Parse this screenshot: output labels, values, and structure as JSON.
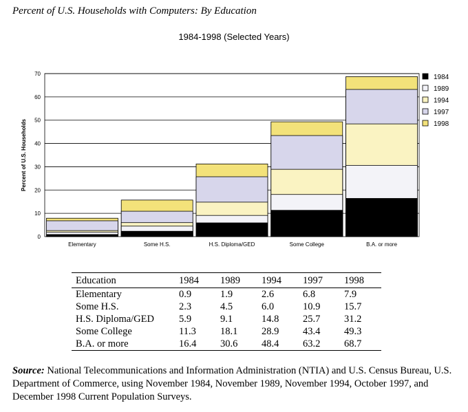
{
  "title": "Percent of U.S. Households with Computers: By Education",
  "subtitle": "1984-1998 (Selected Years)",
  "chart_data": {
    "type": "bar",
    "stacked_overlay": true,
    "categories": [
      "Elementary",
      "Some H.S.",
      "H.S. Diploma/GED",
      "Some College",
      "B.A. or more"
    ],
    "series": [
      {
        "name": "1984",
        "values": [
          0.9,
          2.3,
          5.9,
          11.3,
          16.4
        ],
        "color": "#000000"
      },
      {
        "name": "1989",
        "values": [
          1.9,
          4.5,
          9.1,
          18.1,
          30.6
        ],
        "color": "#f3f3f8"
      },
      {
        "name": "1994",
        "values": [
          2.6,
          6.0,
          14.8,
          28.9,
          48.4
        ],
        "color": "#faf3c2"
      },
      {
        "name": "1997",
        "values": [
          6.8,
          10.9,
          25.7,
          43.4,
          63.2
        ],
        "color": "#d7d6eb"
      },
      {
        "name": "1998",
        "values": [
          7.9,
          15.7,
          31.2,
          49.3,
          68.7
        ],
        "color": "#f3e27a"
      }
    ],
    "ylabel": "Percent of U.S. Households",
    "xlabel": "",
    "ylim": [
      0,
      70
    ],
    "yticks": [
      0,
      10,
      20,
      30,
      40,
      50,
      60,
      70
    ],
    "grid": true,
    "legend_position": "top-right"
  },
  "table": {
    "headers": [
      "Education",
      "1984",
      "1989",
      "1994",
      "1997",
      "1998"
    ],
    "rows": [
      [
        "Elementary",
        "0.9",
        "1.9",
        "2.6",
        "6.8",
        "7.9"
      ],
      [
        "Some H.S.",
        "2.3",
        "4.5",
        "6.0",
        "10.9",
        "15.7"
      ],
      [
        "H.S. Diploma/GED",
        "5.9",
        "9.1",
        "14.8",
        "25.7",
        "31.2"
      ],
      [
        "Some College",
        "11.3",
        "18.1",
        "28.9",
        "43.4",
        "49.3"
      ],
      [
        "B.A. or more",
        "16.4",
        "30.6",
        "48.4",
        "63.2",
        "68.7"
      ]
    ]
  },
  "source": {
    "label": "Source:",
    "text": "National Telecommunications and Information Administration (NTIA) and U.S. Census Bureau, U.S. Department of Commerce, using November 1984, November 1989, November 1994, October 1997, and December 1998 Current Population Surveys."
  }
}
